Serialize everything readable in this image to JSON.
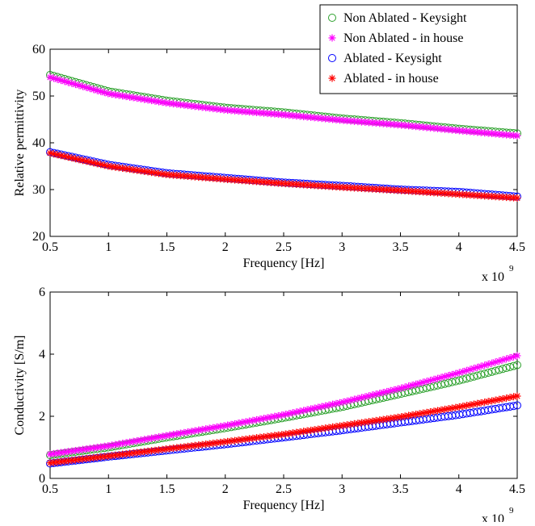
{
  "chart_data": [
    {
      "type": "scatter",
      "xlabel": "Frequency [Hz]",
      "ylabel": "Relative permittivity",
      "xlim": [
        0.5,
        4.5
      ],
      "ylim": [
        20,
        60
      ],
      "x_ticks": [
        "0.5",
        "1",
        "1.5",
        "2",
        "2.5",
        "3",
        "3.5",
        "4",
        "4.5"
      ],
      "y_ticks": [
        "20",
        "30",
        "40",
        "50",
        "60"
      ],
      "x_exponent_label": "x 10",
      "x_exponent_power": "9",
      "legend_position": "top-right",
      "x": [
        0.5,
        1.0,
        1.5,
        2.0,
        2.5,
        3.0,
        3.5,
        4.0,
        4.5
      ],
      "series": [
        {
          "name": "Non Ablated - Keysight",
          "marker": "circle",
          "color": "#2ca02c",
          "values": [
            54.5,
            51.0,
            49.0,
            47.5,
            46.5,
            45.2,
            44.2,
            43.0,
            42.0
          ]
        },
        {
          "name": "Non Ablated - in house",
          "marker": "star",
          "color": "#ff00ff",
          "values": [
            54.0,
            50.5,
            48.5,
            47.0,
            46.0,
            44.8,
            43.8,
            42.6,
            41.5
          ]
        },
        {
          "name": "Ablated - Keysight",
          "marker": "circle",
          "color": "#0000ff",
          "values": [
            38.0,
            35.3,
            33.5,
            32.5,
            31.5,
            30.8,
            30.0,
            29.5,
            28.5
          ]
        },
        {
          "name": "Ablated - in house",
          "marker": "star",
          "color": "#ff0000",
          "values": [
            37.8,
            35.0,
            33.2,
            32.2,
            31.3,
            30.5,
            29.8,
            29.0,
            28.2
          ]
        }
      ]
    },
    {
      "type": "scatter",
      "xlabel": "Frequency [Hz]",
      "ylabel": "Conductivity [S/m]",
      "xlim": [
        0.5,
        4.5
      ],
      "ylim": [
        0,
        6
      ],
      "x_ticks": [
        "0.5",
        "1",
        "1.5",
        "2",
        "2.5",
        "3",
        "3.5",
        "4",
        "4.5"
      ],
      "y_ticks": [
        "0",
        "2",
        "4",
        "6"
      ],
      "x_exponent_label": "x 10",
      "x_exponent_power": "9",
      "x": [
        0.5,
        1.0,
        1.5,
        2.0,
        2.5,
        3.0,
        3.5,
        4.0,
        4.5
      ],
      "series": [
        {
          "name": "Non Ablated - Keysight",
          "marker": "circle",
          "color": "#2ca02c",
          "values": [
            0.75,
            1.0,
            1.32,
            1.62,
            1.95,
            2.3,
            2.72,
            3.15,
            3.65
          ]
        },
        {
          "name": "Non Ablated - in house",
          "marker": "star",
          "color": "#ff00ff",
          "values": [
            0.78,
            1.05,
            1.38,
            1.7,
            2.05,
            2.45,
            2.9,
            3.4,
            3.95
          ]
        },
        {
          "name": "Ablated - Keysight",
          "marker": "circle",
          "color": "#0000ff",
          "values": [
            0.48,
            0.7,
            0.9,
            1.1,
            1.32,
            1.55,
            1.8,
            2.05,
            2.35
          ]
        },
        {
          "name": "Ablated - in house",
          "marker": "star",
          "color": "#ff0000",
          "values": [
            0.5,
            0.72,
            0.95,
            1.18,
            1.42,
            1.7,
            1.98,
            2.3,
            2.65
          ]
        }
      ]
    }
  ]
}
